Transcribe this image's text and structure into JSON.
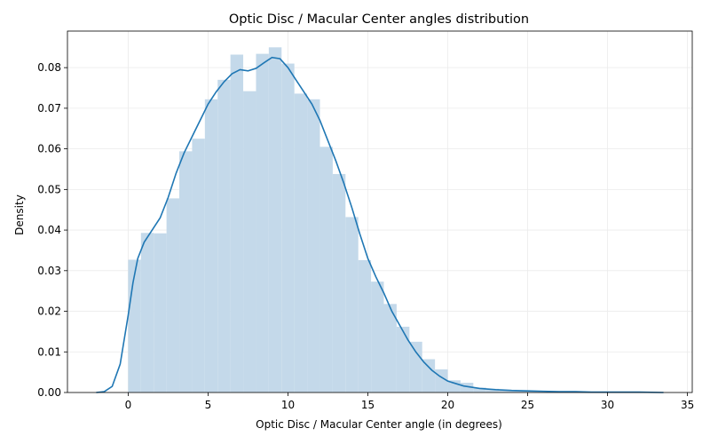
{
  "chart_data": {
    "type": "bar",
    "title": "Optic Disc / Macular Center angles distribution",
    "xlabel": "Optic Disc / Macular Center angle (in degrees)",
    "ylabel": "Density",
    "xlim": [
      -3.8,
      35.3
    ],
    "ylim": [
      0,
      0.089
    ],
    "xticks": [
      0,
      5,
      10,
      15,
      20,
      25,
      30,
      35
    ],
    "yticks": [
      0.0,
      0.01,
      0.02,
      0.03,
      0.04,
      0.05,
      0.06,
      0.07,
      0.08
    ],
    "ytick_labels": [
      "0.00",
      "0.01",
      "0.02",
      "0.03",
      "0.04",
      "0.05",
      "0.06",
      "0.07",
      "0.08"
    ],
    "grid": true,
    "colors": {
      "hist": "#c4d9ea",
      "kde": "#1f77b4",
      "grid": "#ebebeb"
    },
    "histogram": {
      "bin_start": 0,
      "bin_width": 0.8,
      "values": [
        0.0327,
        0.0393,
        0.0392,
        0.0478,
        0.0594,
        0.0625,
        0.0722,
        0.077,
        0.0832,
        0.0742,
        0.0834,
        0.085,
        0.081,
        0.0736,
        0.0722,
        0.0605,
        0.0538,
        0.0432,
        0.0326,
        0.0273,
        0.0218,
        0.0162,
        0.0125,
        0.0082,
        0.0057,
        0.003,
        0.0024,
        0.0012,
        0.0009,
        0.0006,
        0.0005,
        0.0004,
        0.0003,
        0.0002,
        0.0002,
        0.0002,
        0.0001,
        0.0001,
        0.0001,
        0.0001,
        0.0001
      ]
    },
    "kde": {
      "x": [
        -2.0,
        -1.5,
        -1.0,
        -0.5,
        0.0,
        0.3,
        0.6,
        1.0,
        1.5,
        2.0,
        2.5,
        3.0,
        3.5,
        4.0,
        4.5,
        5.0,
        5.5,
        6.0,
        6.5,
        7.0,
        7.5,
        8.0,
        8.5,
        9.0,
        9.5,
        10.0,
        10.5,
        11.0,
        11.5,
        12.0,
        12.5,
        13.0,
        13.5,
        14.0,
        14.5,
        15.0,
        15.5,
        16.0,
        16.5,
        17.0,
        17.5,
        18.0,
        18.5,
        19.0,
        19.5,
        20.0,
        21.0,
        22.0,
        23.0,
        24.0,
        25.0,
        26.0,
        27.0,
        28.0,
        29.0,
        30.0,
        31.0,
        32.0,
        33.5
      ],
      "y": [
        0.0,
        0.0002,
        0.0015,
        0.007,
        0.019,
        0.027,
        0.033,
        0.037,
        0.04,
        0.043,
        0.048,
        0.054,
        0.059,
        0.063,
        0.067,
        0.071,
        0.074,
        0.0765,
        0.0785,
        0.0795,
        0.0792,
        0.0798,
        0.0812,
        0.0825,
        0.0822,
        0.08,
        0.077,
        0.074,
        0.071,
        0.067,
        0.062,
        0.057,
        0.0515,
        0.0455,
        0.039,
        0.033,
        0.0285,
        0.0245,
        0.02,
        0.0165,
        0.013,
        0.01,
        0.0075,
        0.0055,
        0.004,
        0.0028,
        0.0016,
        0.001,
        0.0007,
        0.0005,
        0.0004,
        0.0003,
        0.0002,
        0.0002,
        0.0001,
        0.0001,
        0.0001,
        0.0001,
        0.0
      ]
    }
  }
}
